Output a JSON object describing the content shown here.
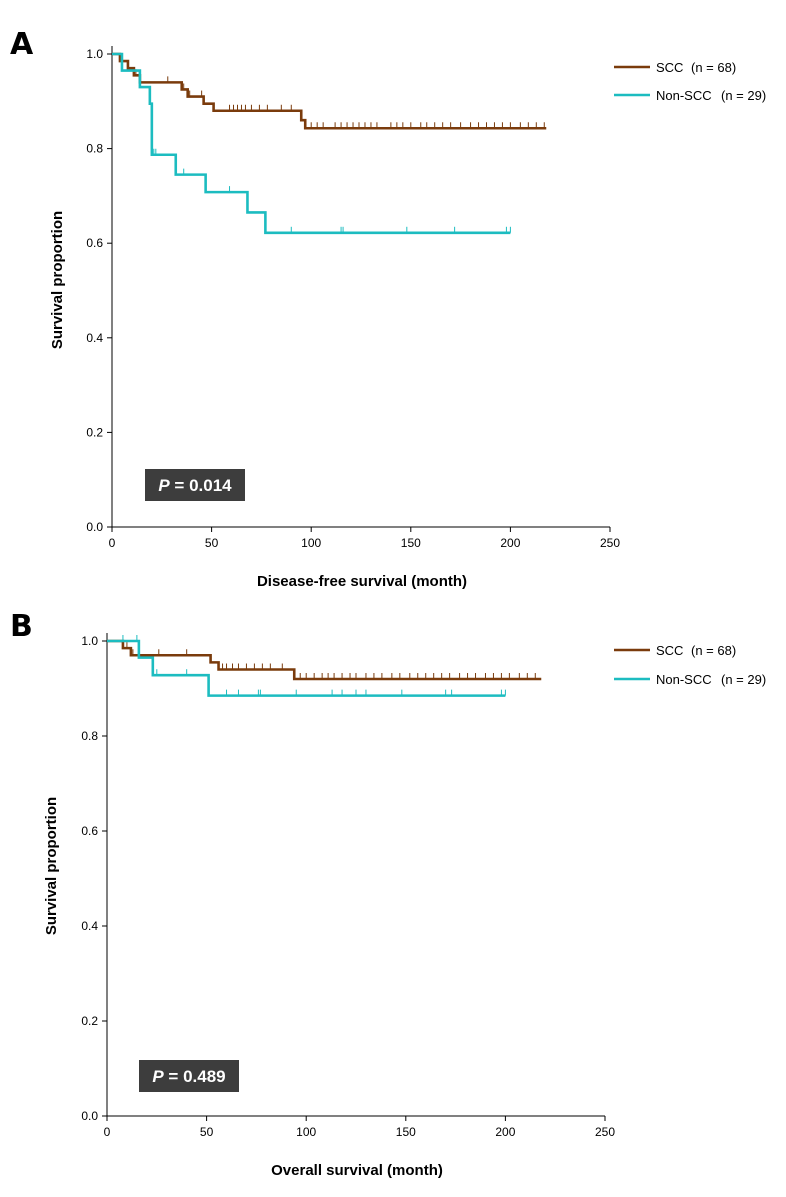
{
  "chart_data": [
    {
      "panel": "A",
      "type": "line",
      "xlabel": "Disease-free survival (month)",
      "ylabel": "Survival proportion",
      "xlim": [
        0,
        250
      ],
      "ylim": [
        0,
        1.0
      ],
      "xticks": [
        "0",
        "50",
        "100",
        "150",
        "200",
        "250"
      ],
      "yticks": [
        "0.0",
        "0.2",
        "0.4",
        "0.6",
        "0.8",
        "1.0"
      ],
      "p_label": "P",
      "p_value": " = 0.014",
      "step": true,
      "series": [
        {
          "name": "SCC",
          "n_label": "(n = 68)",
          "color": "#7a3b0c",
          "x": [
            0,
            4,
            8,
            11,
            14,
            35,
            38,
            46,
            51,
            95,
            97,
            218
          ],
          "y": [
            1.0,
            0.985,
            0.97,
            0.955,
            0.94,
            0.925,
            0.91,
            0.895,
            0.88,
            0.86,
            0.843,
            0.843
          ],
          "censor_x": [
            8,
            12,
            28,
            36,
            39,
            45,
            59,
            61,
            63,
            65,
            67,
            70,
            74,
            78,
            85,
            90,
            100,
            103,
            106,
            112,
            115,
            118,
            121,
            124,
            127,
            130,
            133,
            140,
            143,
            146,
            150,
            155,
            158,
            162,
            166,
            170,
            175,
            180,
            184,
            188,
            192,
            196,
            200,
            205,
            209,
            213,
            217
          ]
        },
        {
          "name": "Non-SCC",
          "n_label": "(n = 29)",
          "color": "#1cbcc0",
          "x": [
            0,
            5,
            14,
            19,
            20,
            32,
            47,
            68,
            77,
            200
          ],
          "y": [
            1.0,
            0.965,
            0.93,
            0.895,
            0.787,
            0.745,
            0.708,
            0.665,
            0.622,
            0.622
          ],
          "censor_x": [
            21,
            22,
            36,
            59,
            90,
            115,
            116,
            148,
            172,
            198,
            200
          ]
        }
      ]
    },
    {
      "panel": "B",
      "type": "line",
      "xlabel": "Overall survival (month)",
      "ylabel": "Survival proportion",
      "xlim": [
        0,
        250
      ],
      "ylim": [
        0,
        1.0
      ],
      "xticks": [
        "0",
        "50",
        "100",
        "150",
        "200",
        "250"
      ],
      "yticks": [
        "0.0",
        "0.2",
        "0.4",
        "0.6",
        "0.8",
        "1.0"
      ],
      "p_label": "P",
      "p_value": " = 0.489",
      "step": true,
      "series": [
        {
          "name": "SCC",
          "n_label": "(n = 68)",
          "color": "#7a3b0c",
          "x": [
            0,
            8,
            12,
            15,
            52,
            56,
            94,
            218
          ],
          "y": [
            1.0,
            0.985,
            0.97,
            0.97,
            0.955,
            0.94,
            0.92,
            0.92
          ],
          "censor_x": [
            10,
            13,
            26,
            40,
            58,
            60,
            63,
            66,
            70,
            74,
            78,
            82,
            88,
            97,
            100,
            104,
            108,
            111,
            114,
            118,
            122,
            125,
            130,
            134,
            138,
            143,
            147,
            152,
            156,
            160,
            164,
            168,
            172,
            177,
            181,
            185,
            190,
            194,
            198,
            202,
            207,
            211,
            215
          ]
        },
        {
          "name": "Non-SCC",
          "n_label": "(n = 29)",
          "color": "#1cbcc0",
          "x": [
            0,
            16,
            23,
            51,
            200
          ],
          "y": [
            1.0,
            0.965,
            0.928,
            0.885,
            0.885
          ],
          "censor_x": [
            8,
            15,
            25,
            40,
            60,
            66,
            76,
            77,
            95,
            113,
            118,
            125,
            130,
            148,
            170,
            173,
            198,
            200
          ]
        }
      ]
    }
  ]
}
